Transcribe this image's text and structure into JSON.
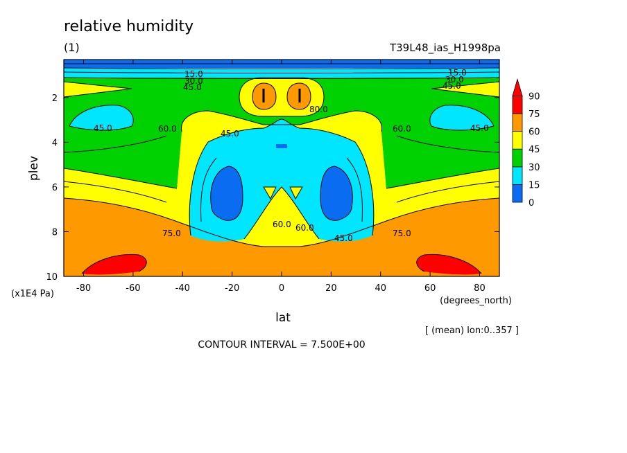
{
  "chart_data": {
    "type": "heatmap",
    "title": "relative humidity",
    "subtitle": "(1)",
    "experiment": "T39L48_ias_H1998pa",
    "xlabel": "lat",
    "xunit": "(degrees_north)",
    "ylabel": "plev",
    "yunit": "(x1E4 Pa)",
    "xlim": [
      -88,
      88
    ],
    "ylim": [
      10,
      0.3
    ],
    "x_ticks": [
      "-80",
      "-60",
      "-40",
      "-20",
      "0",
      "20",
      "40",
      "60",
      "80"
    ],
    "y_ticks": [
      "2",
      "4",
      "6",
      "8",
      "10"
    ],
    "x_tick_values": [
      -80,
      -60,
      -40,
      -20,
      0,
      20,
      40,
      60,
      80
    ],
    "y_tick_values": [
      2,
      4,
      6,
      8,
      10
    ],
    "colorbar": {
      "levels": [
        "0",
        "15",
        "30",
        "45",
        "60",
        "75",
        "90"
      ],
      "colors": [
        "#0a6cf0",
        "#00e6ff",
        "#00d100",
        "#ffff00",
        "#ff9900",
        "#ff0000",
        "#ff0000"
      ]
    },
    "bands": {
      "b15": "#0a6cf0",
      "b30": "#00e6ff",
      "b45": "#00d100",
      "b60": "#ffff00",
      "b75": "#ff9900",
      "b90": "#ff0000"
    },
    "contour_labels": [
      "15.0",
      "30.0",
      "45.0",
      "15.0",
      "30.0",
      "45.0",
      "45.0",
      "60.0",
      "45.0",
      "60.0",
      "45.0",
      "60.0",
      "80.0",
      "60.0",
      "45.0",
      "75.0",
      "75.0"
    ],
    "mean_note": "[ (mean) lon:0..357 ]",
    "contour_interval": "CONTOUR INTERVAL = 7.500E+00"
  }
}
